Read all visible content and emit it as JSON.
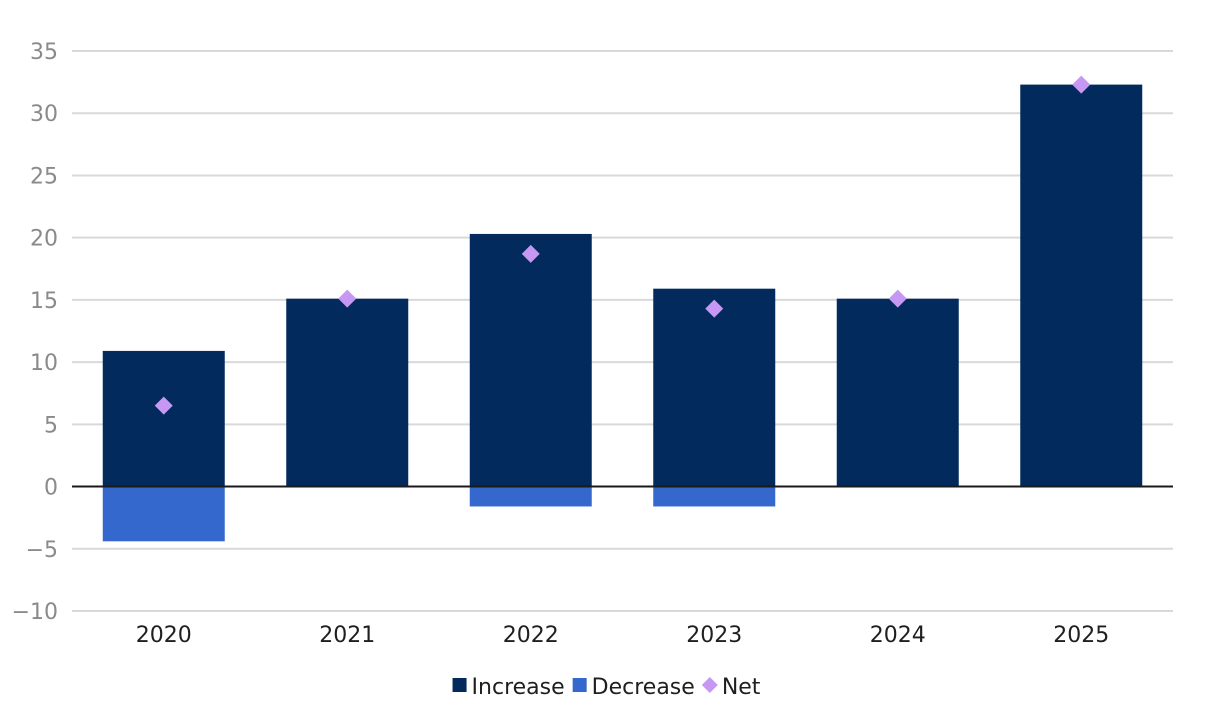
{
  "chart_data": {
    "type": "bar",
    "categories": [
      "2020",
      "2021",
      "2022",
      "2023",
      "2024",
      "2025"
    ],
    "series": [
      {
        "name": "Increase",
        "kind": "bar",
        "color": "#022a5c",
        "values": [
          10.9,
          15.1,
          20.3,
          15.9,
          15.1,
          32.3
        ]
      },
      {
        "name": "Decrease",
        "kind": "bar",
        "color": "#3568cc",
        "values": [
          -4.4,
          0,
          -1.6,
          -1.6,
          0,
          0
        ]
      },
      {
        "name": "Net",
        "kind": "marker",
        "marker": "diamond",
        "color": "#c698f3",
        "values": [
          6.5,
          15.1,
          18.7,
          14.3,
          15.1,
          32.3
        ]
      }
    ],
    "ylim": [
      -10,
      35
    ],
    "yticks": [
      -10,
      -5,
      0,
      5,
      10,
      15,
      20,
      25,
      30,
      35
    ],
    "ytick_labels": [
      "−10",
      "−5",
      "0",
      "5",
      "10",
      "15",
      "20",
      "25",
      "30",
      "35"
    ],
    "grid": true,
    "legend_position": "bottom-center",
    "title": "",
    "xlabel": "",
    "ylabel": ""
  }
}
